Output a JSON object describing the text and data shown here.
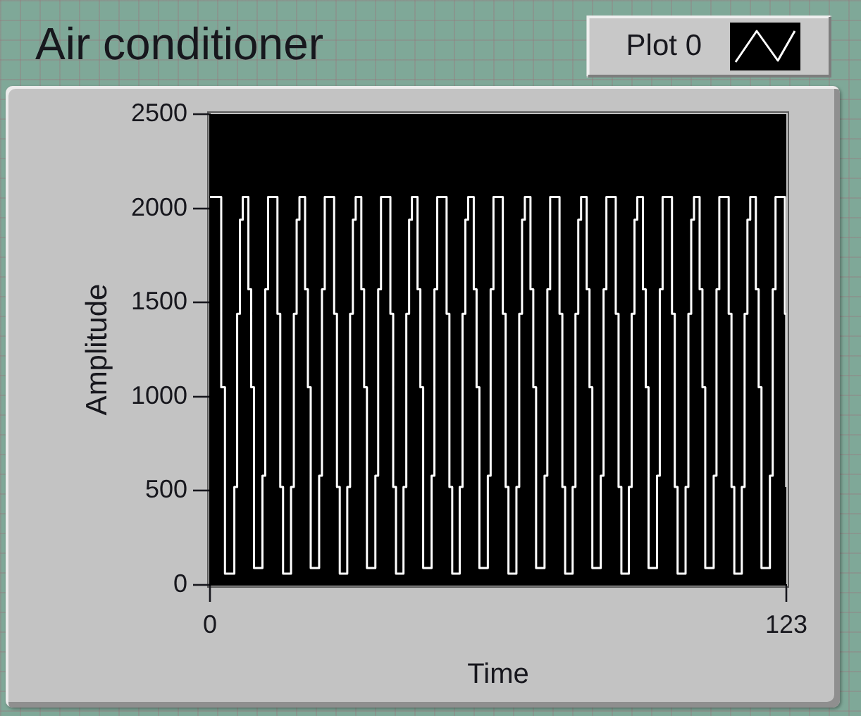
{
  "chart_data": {
    "type": "step",
    "title": "Air conditioner",
    "xlabel": "Time",
    "ylabel": "Amplitude",
    "x": [
      0,
      2.4,
      3.2,
      5.2,
      5.8,
      6.4,
      7.0,
      8.2,
      8.8,
      9.4,
      11.2,
      11.8,
      12.4,
      14.4,
      15.0,
      15.6,
      17.3,
      17.9,
      18.5,
      19.1,
      20.3,
      20.9,
      21.5,
      23.3,
      23.9,
      24.5,
      26.5,
      27.1,
      27.7,
      29.3,
      29.9,
      30.5,
      31.1,
      32.3,
      32.9,
      33.5,
      35.3,
      35.9,
      36.5,
      38.5,
      39.1,
      39.7,
      41.3,
      41.9,
      42.5,
      43.1,
      44.3,
      44.9,
      45.5,
      47.3,
      47.9,
      48.5,
      50.5,
      51.1,
      51.7,
      53.3,
      53.9,
      54.5,
      55.1,
      56.3,
      56.9,
      57.5,
      59.3,
      59.9,
      60.5,
      62.5,
      63.1,
      63.7,
      65.4,
      66.0,
      66.6,
      67.2,
      68.4,
      69.0,
      69.6,
      71.4,
      72.0,
      72.6,
      74.6,
      75.2,
      75.8,
      77.4,
      78.0,
      78.6,
      79.2,
      80.4,
      81.0,
      81.6,
      83.4,
      84.0,
      84.6,
      86.6,
      87.2,
      87.8,
      89.4,
      90.0,
      90.6,
      91.2,
      92.4,
      93.0,
      93.6,
      95.4,
      96.0,
      96.6,
      98.6,
      99.2,
      99.8,
      101.5,
      102.1,
      102.7,
      103.3,
      104.5,
      105.1,
      105.7,
      107.5,
      108.1,
      108.7,
      110.7,
      111.3,
      111.9,
      113.5,
      114.1,
      114.7,
      115.3,
      116.5,
      117.1,
      117.7,
      119.5,
      120.1,
      120.7,
      122.7,
      123
    ],
    "series": [
      {
        "name": "Plot 0",
        "color": "#ffffff",
        "values": [
          2060,
          1050,
          60,
          520,
          1440,
          1940,
          2060,
          1570,
          1050,
          90,
          580,
          1570,
          2060,
          1440,
          520,
          60,
          520,
          1440,
          1940,
          2060,
          1570,
          1050,
          90,
          580,
          1570,
          2060,
          1440,
          520,
          60,
          520,
          1440,
          1940,
          2060,
          1570,
          1050,
          90,
          580,
          1570,
          2060,
          1440,
          520,
          60,
          520,
          1440,
          1940,
          2060,
          1570,
          1050,
          90,
          580,
          1570,
          2060,
          1440,
          520,
          60,
          520,
          1440,
          1940,
          2060,
          1570,
          1050,
          90,
          580,
          1570,
          2060,
          1440,
          520,
          60,
          520,
          1440,
          1940,
          2060,
          1570,
          1050,
          90,
          580,
          1570,
          2060,
          1440,
          520,
          60,
          520,
          1440,
          1940,
          2060,
          1570,
          1050,
          90,
          580,
          1570,
          2060,
          1440,
          520,
          60,
          520,
          1440,
          1940,
          2060,
          1570,
          1050,
          90,
          580,
          1570,
          2060,
          1440,
          520,
          60,
          520,
          1440,
          1940,
          2060,
          1570,
          1050,
          90,
          580,
          1570,
          2060,
          1440,
          520,
          60,
          520,
          1440,
          1940,
          2060,
          1570,
          1050,
          90,
          580,
          1570,
          2060,
          1440,
          520
        ]
      }
    ],
    "xlim": [
      0,
      123
    ],
    "xticks": [
      0,
      123
    ],
    "ylim": [
      0,
      2500
    ],
    "yticks": [
      0,
      500,
      1000,
      1500,
      2000,
      2500
    ],
    "legend": "top right",
    "marker": "none"
  }
}
